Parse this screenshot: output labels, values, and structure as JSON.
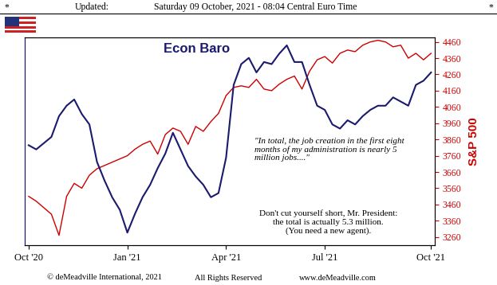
{
  "chart_data": {
    "type": "line",
    "title": "Econ Baro",
    "y2label": "S&P 500",
    "header": [
      "*",
      "Updated:",
      "Saturday 09 October, 2021 - 08:04 Central Euro Time",
      "*"
    ],
    "footer": [
      "© deMeadville International, 2021",
      "All Rights Reserved",
      "www.deMeadville.com"
    ],
    "annotations": [
      "\"In total, the job creation in the first eight\nmonths of my administration is nearly 5\nmillion jobs....\"",
      "Don't cut yourself short, Mr. President:\nthe total is actually 5.3 million.\n(You need a new agent)."
    ],
    "categories": [
      "Oct '20",
      null,
      null,
      null,
      null,
      null,
      null,
      null,
      null,
      null,
      null,
      null,
      null,
      "Jan '21",
      null,
      null,
      null,
      null,
      null,
      null,
      null,
      null,
      null,
      null,
      null,
      null,
      "Apr '21",
      null,
      null,
      null,
      null,
      null,
      null,
      null,
      null,
      null,
      null,
      null,
      null,
      "Jul '21",
      null,
      null,
      null,
      null,
      null,
      null,
      null,
      null,
      null,
      null,
      null,
      null,
      null,
      "Oct '21"
    ],
    "ylim": [
      0,
      100
    ],
    "yticks": [],
    "y2lim": [
      3210,
      4490
    ],
    "y2ticks": [
      3260,
      3360,
      3460,
      3560,
      3660,
      3760,
      3860,
      3960,
      4060,
      4160,
      4260,
      4360,
      4460
    ],
    "series": [
      {
        "color": "#1a1a6e",
        "axis": "y",
        "values": [
          48,
          46,
          49,
          52,
          62,
          67,
          70,
          63,
          58,
          40,
          31,
          23,
          17,
          6,
          15,
          23,
          29,
          37,
          44,
          54,
          46,
          38,
          33,
          29,
          23,
          25,
          42,
          77,
          87,
          90,
          83,
          88,
          87,
          92,
          96,
          88,
          88,
          77,
          67,
          65,
          58,
          56,
          60,
          58,
          62,
          65,
          67,
          67,
          71,
          69,
          67,
          77,
          79,
          83
        ]
      },
      {
        "color": "#cc0000",
        "axis": "y2",
        "values": [
          3510,
          3480,
          3440,
          3400,
          3270,
          3510,
          3590,
          3560,
          3640,
          3680,
          3700,
          3720,
          3740,
          3760,
          3800,
          3830,
          3850,
          3770,
          3890,
          3930,
          3910,
          3830,
          3940,
          3910,
          3970,
          4020,
          4130,
          4180,
          4190,
          4180,
          4230,
          4170,
          4160,
          4200,
          4230,
          4250,
          4170,
          4280,
          4350,
          4370,
          4330,
          4390,
          4410,
          4400,
          4440,
          4460,
          4470,
          4460,
          4430,
          4440,
          4360,
          4390,
          4350,
          4390
        ]
      }
    ]
  }
}
